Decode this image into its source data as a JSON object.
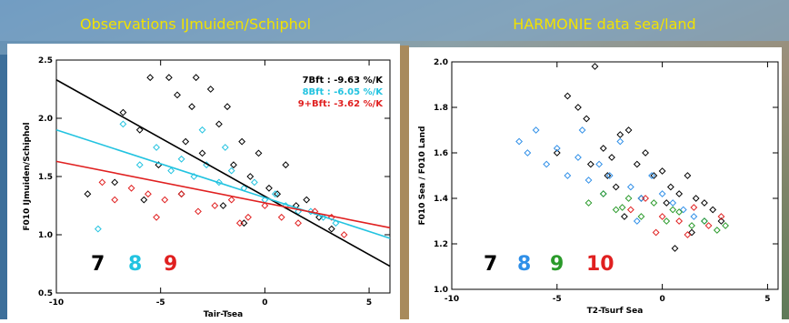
{
  "chart_data": [
    {
      "type": "scatter",
      "title": "Observations IJmuiden/Schiphol",
      "x_label": "Tair-Tsea",
      "y_label": "F010 IJmuiden/Schiphol",
      "xlim": [
        -10,
        6
      ],
      "ylim": [
        0.5,
        2.5
      ],
      "xticks": [
        -10,
        -5,
        0,
        5
      ],
      "yticks": [
        0.5,
        {
          "value": 1.0,
          "label": "1.0"
        },
        1.5,
        {
          "value": 2.0,
          "label": "2.0"
        },
        2.5
      ],
      "series": [
        {
          "name": "7",
          "color": "#000000",
          "x": [
            -8.5,
            -7.2,
            -6.8,
            -6.0,
            -5.5,
            -5.1,
            -4.6,
            -4.2,
            -3.8,
            -3.3,
            -3.0,
            -2.6,
            -2.2,
            -1.8,
            -1.5,
            -1.1,
            -0.7,
            -0.3,
            0.2,
            0.6,
            1.0,
            1.5,
            2.0,
            2.6,
            3.2,
            -4.0,
            -2.0,
            -1.0,
            -5.8,
            -3.5
          ],
          "values": [
            1.35,
            1.45,
            2.05,
            1.9,
            2.35,
            1.6,
            2.35,
            2.2,
            1.8,
            2.35,
            1.7,
            2.25,
            1.95,
            2.1,
            1.6,
            1.8,
            1.5,
            1.7,
            1.4,
            1.35,
            1.6,
            1.25,
            1.3,
            1.15,
            1.05,
            1.35,
            1.25,
            1.1,
            1.3,
            2.1
          ]
        },
        {
          "name": "8",
          "color": "#22c3e0",
          "x": [
            -8,
            -6.8,
            -6,
            -5.2,
            -4.5,
            -4,
            -3.4,
            -2.8,
            -2.2,
            -1.6,
            -1,
            -0.5,
            0,
            0.5,
            1,
            1.6,
            2.2,
            2.8,
            3.4,
            -3,
            -1.9
          ],
          "values": [
            1.05,
            1.95,
            1.6,
            1.75,
            1.55,
            1.65,
            1.5,
            1.6,
            1.45,
            1.55,
            1.4,
            1.45,
            1.3,
            1.35,
            1.25,
            1.2,
            1.2,
            1.15,
            1.1,
            1.9,
            1.75
          ]
        },
        {
          "name": "9",
          "color": "#e02020",
          "x": [
            -7.8,
            -7.2,
            -6.4,
            -5.6,
            -4.8,
            -4.0,
            -3.2,
            -2.4,
            -1.6,
            -0.8,
            0.0,
            0.8,
            1.6,
            2.4,
            3.2,
            3.8,
            -5.2,
            -1.2
          ],
          "values": [
            1.45,
            1.3,
            1.4,
            1.35,
            1.3,
            1.35,
            1.2,
            1.25,
            1.3,
            1.15,
            1.25,
            1.15,
            1.1,
            1.2,
            1.15,
            1.0,
            1.15,
            1.1
          ]
        }
      ],
      "trend_lines": [
        {
          "name": "7Bft : -9.63 %/K",
          "color": "#000000",
          "x": [
            -10,
            6
          ],
          "y": [
            2.33,
            0.73
          ]
        },
        {
          "name": "8Bft : -6.05 %/K",
          "color": "#22c3e0",
          "x": [
            -10,
            6
          ],
          "y": [
            1.9,
            0.97
          ]
        },
        {
          "name": "9+Bft: -3.62 %/K",
          "color": "#e02020",
          "x": [
            -10,
            6
          ],
          "y": [
            1.63,
            1.06
          ]
        }
      ]
    },
    {
      "type": "scatter",
      "title": "HARMONIE data sea/land",
      "x_label": "T2-Tsurf Sea",
      "y_label": "F010 Sea / F010 Land",
      "xlim": [
        -10,
        5.5
      ],
      "ylim": [
        1.0,
        2.0
      ],
      "xticks": [
        -10,
        -5,
        0,
        5
      ],
      "yticks": [
        {
          "value": 1.0,
          "label": "1.0"
        },
        1.2,
        1.4,
        1.6,
        1.8,
        {
          "value": 2.0,
          "label": "2.0"
        }
      ],
      "series": [
        {
          "name": "7",
          "color": "#000000",
          "x": [
            -4.5,
            -4,
            -3.6,
            -3.2,
            -2.8,
            -2.4,
            -2,
            -1.6,
            -1.2,
            -0.8,
            -0.4,
            0,
            0.4,
            0.8,
            1.2,
            1.6,
            2,
            2.4,
            2.8,
            -3.4,
            -2.2,
            -1,
            0.2,
            1.4,
            -5,
            -2.6,
            0.6,
            -1.8
          ],
          "values": [
            1.85,
            1.8,
            1.75,
            1.98,
            1.62,
            1.58,
            1.68,
            1.7,
            1.55,
            1.6,
            1.5,
            1.52,
            1.45,
            1.42,
            1.5,
            1.4,
            1.38,
            1.35,
            1.3,
            1.55,
            1.45,
            1.4,
            1.38,
            1.25,
            1.6,
            1.5,
            1.18,
            1.32
          ]
        },
        {
          "name": "8",
          "color": "#2f8fe8",
          "x": [
            -6.8,
            -6.4,
            -6,
            -5.5,
            -5,
            -4.5,
            -4,
            -3.5,
            -3,
            -2.5,
            -2,
            -1.5,
            -1,
            -0.5,
            0,
            0.5,
            1,
            1.5,
            2,
            -3.8,
            -2.8,
            -1.2
          ],
          "values": [
            1.65,
            1.6,
            1.7,
            1.55,
            1.62,
            1.5,
            1.58,
            1.48,
            1.55,
            1.5,
            1.65,
            1.45,
            1.4,
            1.5,
            1.42,
            1.38,
            1.35,
            1.32,
            1.3,
            1.7,
            1.42,
            1.3
          ]
        },
        {
          "name": "9",
          "color": "#2a9a2a",
          "x": [
            -3.5,
            -2.8,
            -2.2,
            -1.6,
            -1,
            -0.4,
            0.2,
            0.8,
            1.4,
            2,
            2.6,
            3,
            -1.9,
            0.5
          ],
          "values": [
            1.38,
            1.42,
            1.35,
            1.4,
            1.32,
            1.38,
            1.3,
            1.34,
            1.28,
            1.3,
            1.26,
            1.28,
            1.36,
            1.35
          ]
        },
        {
          "name": "10",
          "color": "#e02020",
          "x": [
            -1.5,
            -0.8,
            0,
            0.8,
            1.5,
            2.2,
            2.8,
            -0.3,
            1.2
          ],
          "values": [
            1.35,
            1.4,
            1.32,
            1.3,
            1.36,
            1.28,
            1.32,
            1.25,
            1.24
          ]
        }
      ]
    }
  ]
}
